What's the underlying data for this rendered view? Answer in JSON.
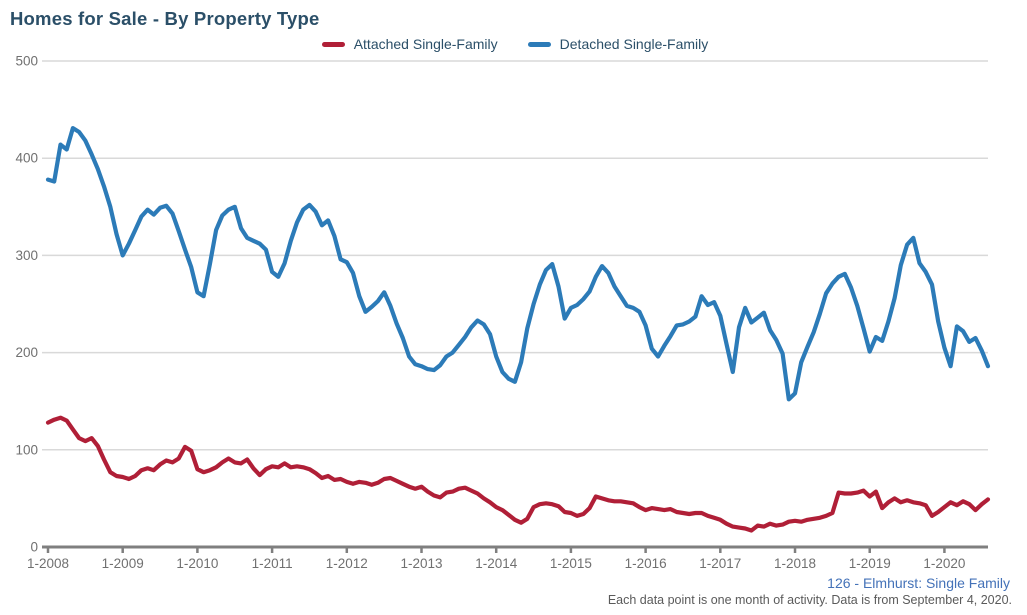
{
  "title": "Homes for Sale - By Property Type",
  "footer": {
    "source": "126 - Elmhurst: Single Family",
    "note": "Each data point is one month of activity. Data is from September 4, 2020."
  },
  "colors": {
    "title_text": "#2b4f68",
    "attached_line": "#b01f37",
    "detached_line": "#2c7bb8",
    "gridline": "#d9d9d9",
    "axis": "#7f7f7f",
    "tick_label": "#707070",
    "source_text": "#4472b8",
    "note_text": "#5a5a5a"
  },
  "chart_data": {
    "type": "line",
    "title": "Homes for Sale - By Property Type",
    "xlabel": "",
    "ylabel": "",
    "x_monthly_range": [
      "2008-01",
      "2020-08"
    ],
    "x_tick_labels": [
      "1-2008",
      "1-2009",
      "1-2010",
      "1-2011",
      "1-2012",
      "1-2013",
      "1-2014",
      "1-2015",
      "1-2016",
      "1-2017",
      "1-2018",
      "1-2019",
      "1-2020"
    ],
    "y_ticks": [
      0,
      100,
      200,
      300,
      400,
      500
    ],
    "ylim": [
      0,
      500
    ],
    "grid": "horizontal",
    "legend_position": "top-center",
    "series": [
      {
        "name": "Attached Single-Family",
        "color": "#b01f37",
        "values": [
          128,
          131,
          133,
          130,
          121,
          112,
          109,
          112,
          104,
          90,
          77,
          73,
          72,
          70,
          73,
          79,
          81,
          79,
          85,
          89,
          87,
          91,
          103,
          99,
          80,
          77,
          79,
          82,
          87,
          91,
          87,
          86,
          90,
          81,
          74,
          80,
          83,
          82,
          86,
          82,
          83,
          82,
          80,
          76,
          71,
          73,
          69,
          70,
          67,
          65,
          67,
          66,
          64,
          66,
          70,
          71,
          68,
          65,
          62,
          60,
          62,
          57,
          53,
          51,
          56,
          57,
          60,
          61,
          58,
          55,
          50,
          46,
          41,
          38,
          33,
          28,
          25,
          29,
          41,
          44,
          45,
          44,
          42,
          36,
          35,
          32,
          34,
          40,
          52,
          50,
          48,
          47,
          47,
          46,
          45,
          41,
          38,
          40,
          39,
          38,
          39,
          36,
          35,
          34,
          35,
          35,
          32,
          30,
          28,
          24,
          21,
          20,
          19,
          17,
          22,
          21,
          24,
          22,
          23,
          26,
          27,
          26,
          28,
          29,
          30,
          32,
          35,
          56,
          55,
          55,
          56,
          58,
          52,
          57,
          40,
          46,
          50,
          46,
          48,
          46,
          45,
          43,
          32,
          36,
          41,
          46,
          43,
          47,
          44,
          38,
          44,
          49
        ]
      },
      {
        "name": "Detached Single-Family",
        "color": "#2c7bb8",
        "values": [
          378,
          376,
          414,
          409,
          431,
          427,
          418,
          404,
          389,
          371,
          350,
          322,
          300,
          312,
          326,
          340,
          347,
          342,
          349,
          351,
          343,
          325,
          306,
          288,
          262,
          258,
          291,
          326,
          341,
          347,
          350,
          328,
          318,
          315,
          312,
          306,
          283,
          278,
          292,
          315,
          334,
          347,
          352,
          345,
          331,
          336,
          320,
          296,
          293,
          282,
          258,
          242,
          247,
          253,
          262,
          248,
          230,
          215,
          196,
          188,
          186,
          183,
          182,
          187,
          196,
          200,
          208,
          216,
          226,
          233,
          229,
          219,
          196,
          180,
          173,
          170,
          190,
          225,
          250,
          270,
          285,
          291,
          268,
          235,
          246,
          249,
          255,
          263,
          278,
          289,
          282,
          268,
          258,
          248,
          246,
          242,
          228,
          204,
          196,
          207,
          217,
          228,
          229,
          232,
          237,
          258,
          249,
          252,
          238,
          209,
          180,
          226,
          246,
          231,
          236,
          241,
          223,
          213,
          199,
          152,
          158,
          190,
          206,
          221,
          240,
          261,
          271,
          278,
          281,
          267,
          248,
          225,
          201,
          216,
          212,
          232,
          256,
          290,
          311,
          318,
          292,
          283,
          270,
          232,
          205,
          186,
          227,
          222,
          211,
          215,
          202,
          186
        ]
      }
    ]
  }
}
